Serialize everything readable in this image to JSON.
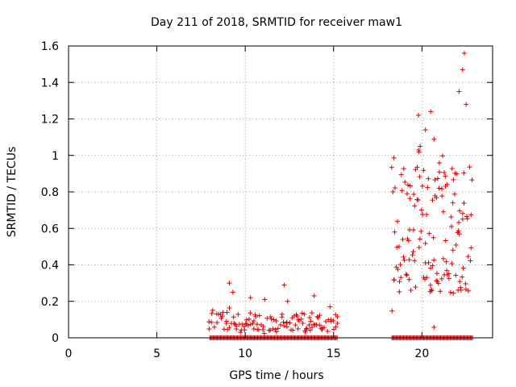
{
  "chart_data": {
    "type": "scatter",
    "title": "Day 211 of 2018, SRMTID for receiver maw1",
    "xlabel": "GPS time / hours",
    "ylabel": "SRMTID / TECUs",
    "xlim": [
      0,
      24
    ],
    "ylim": [
      0,
      1.6
    ],
    "xticks": [
      0,
      5,
      10,
      15,
      20
    ],
    "xtick_labels": [
      "0",
      "5",
      "10",
      "15",
      "20"
    ],
    "yticks": [
      0,
      0.2,
      0.4,
      0.6,
      0.8,
      1.0,
      1.2,
      1.4,
      1.6
    ],
    "ytick_labels": [
      "0",
      "0.2",
      "0.4",
      "0.6",
      "0.8",
      "1",
      "1.2",
      "1.4",
      "1.6"
    ],
    "grid": true,
    "marker": "+",
    "color": "#e00000",
    "series": [
      {
        "name": "maw1",
        "segments": [
          {
            "x_start": 8.0,
            "x_end": 15.25,
            "step": 0.1,
            "base": 0.09,
            "amp": 0.05,
            "peaks": [
              [
                9.1,
                0.3
              ],
              [
                9.3,
                0.25
              ],
              [
                10.3,
                0.22
              ],
              [
                11.1,
                0.21
              ],
              [
                12.2,
                0.29
              ],
              [
                12.4,
                0.2
              ],
              [
                13.9,
                0.23
              ],
              [
                14.8,
                0.17
              ]
            ]
          },
          {
            "x_start": 18.3,
            "x_end": 22.9,
            "step": 0.05,
            "base": 0.6,
            "amp": 0.35,
            "peaks": [
              [
                19.8,
                1.22
              ],
              [
                20.2,
                1.14
              ],
              [
                20.5,
                1.24
              ],
              [
                22.1,
                1.35
              ],
              [
                22.3,
                1.47
              ],
              [
                22.4,
                1.56
              ],
              [
                22.5,
                1.28
              ],
              [
                19.9,
                1.05
              ]
            ]
          }
        ],
        "zero_rows": [
          {
            "x_start": 8.0,
            "x_end": 15.25,
            "step": 0.06
          },
          {
            "x_start": 18.3,
            "x_end": 22.9,
            "step": 0.06
          }
        ]
      }
    ]
  }
}
